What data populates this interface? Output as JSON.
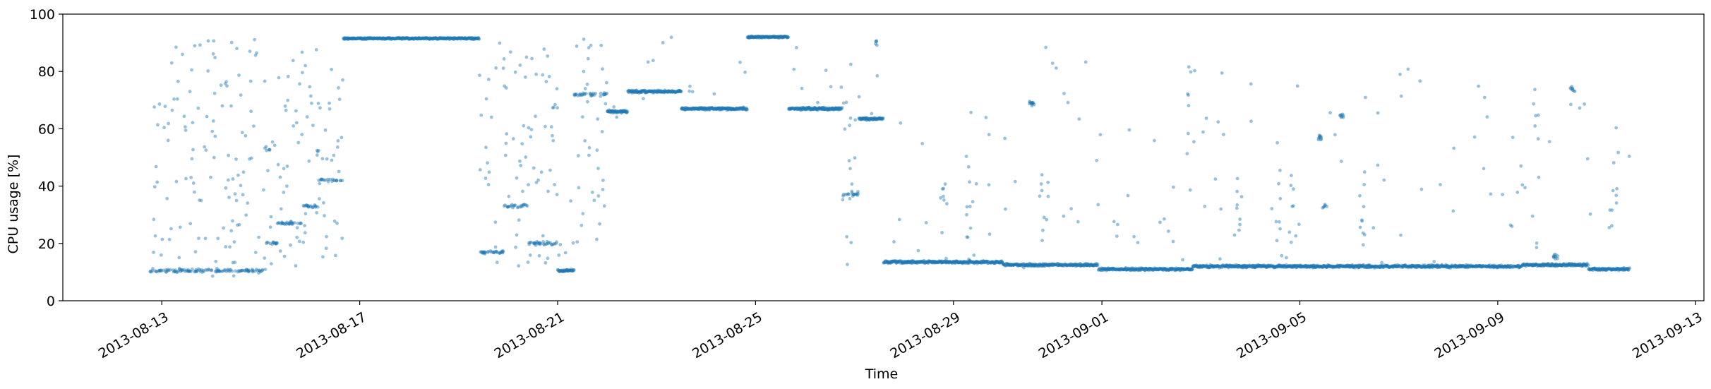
{
  "chart_data": {
    "type": "scatter",
    "xlabel": "Time",
    "ylabel": "CPU usage [%]",
    "ylim": [
      0,
      100
    ],
    "y_ticks": [
      0,
      20,
      40,
      60,
      80,
      100
    ],
    "xlim": [
      "2013-08-11T00:00",
      "2013-09-13T04:00"
    ],
    "x_ticks": [
      "2013-08-13",
      "2013-08-17",
      "2013-08-21",
      "2013-08-25",
      "2013-08-29",
      "2013-09-01",
      "2013-09-05",
      "2013-09-09",
      "2013-09-13"
    ],
    "marker_color": "#1f77b4",
    "grid": false,
    "legend": "none",
    "segments": [
      {
        "start": "2013-08-12T18:00",
        "end": "2013-08-15T02:00",
        "base": 10.5,
        "spread": [
          8,
          92
        ],
        "density": "scattered"
      },
      {
        "start": "2013-08-15T02:00",
        "end": "2013-08-15T08:00",
        "base": 20,
        "spread": [
          10,
          60
        ],
        "density": "scattered"
      },
      {
        "start": "2013-08-15T08:00",
        "end": "2013-08-15T20:00",
        "base": 27,
        "spread": [
          12,
          90
        ],
        "density": "scattered"
      },
      {
        "start": "2013-08-15T20:00",
        "end": "2013-08-16T04:00",
        "base": 33,
        "spread": [
          15,
          92
        ],
        "density": "scattered"
      },
      {
        "start": "2013-08-16T04:00",
        "end": "2013-08-16T16:00",
        "base": 42,
        "spread": [
          10,
          83
        ],
        "density": "scattered"
      },
      {
        "start": "2013-08-16T16:00",
        "end": "2013-08-19T10:00",
        "base": 91.5,
        "spread": [
          90,
          93
        ],
        "density": "solid"
      },
      {
        "start": "2013-08-19T10:00",
        "end": "2013-08-19T22:00",
        "base": 17,
        "spread": [
          10,
          90
        ],
        "density": "scattered"
      },
      {
        "start": "2013-08-19T22:00",
        "end": "2013-08-20T10:00",
        "base": 33,
        "spread": [
          12,
          91
        ],
        "density": "scattered"
      },
      {
        "start": "2013-08-20T10:00",
        "end": "2013-08-21T00:00",
        "base": 20,
        "spread": [
          10,
          91
        ],
        "density": "scattered"
      },
      {
        "start": "2013-08-21T00:00",
        "end": "2013-08-21T08:00",
        "base": 10.5,
        "spread": [
          10,
          40
        ],
        "density": "band"
      },
      {
        "start": "2013-08-21T08:00",
        "end": "2013-08-22T00:00",
        "base": 72,
        "spread": [
          15,
          92
        ],
        "density": "scattered"
      },
      {
        "start": "2013-08-22T00:00",
        "end": "2013-08-22T10:00",
        "base": 66,
        "spread": [
          63,
          68
        ],
        "density": "band"
      },
      {
        "start": "2013-08-22T10:00",
        "end": "2013-08-23T12:00",
        "base": 73,
        "spread": [
          70,
          92
        ],
        "density": "band"
      },
      {
        "start": "2013-08-23T12:00",
        "end": "2013-08-24T20:00",
        "base": 67,
        "spread": [
          65,
          92
        ],
        "density": "band"
      },
      {
        "start": "2013-08-24T20:00",
        "end": "2013-08-25T16:00",
        "base": 92,
        "spread": [
          90,
          93
        ],
        "density": "solid"
      },
      {
        "start": "2013-08-25T16:00",
        "end": "2013-08-26T18:00",
        "base": 67,
        "spread": [
          65,
          92
        ],
        "density": "band"
      },
      {
        "start": "2013-08-26T18:00",
        "end": "2013-08-27T02:00",
        "base": 37,
        "spread": [
          10,
          85
        ],
        "density": "scattered"
      },
      {
        "start": "2013-08-27T02:00",
        "end": "2013-08-27T14:00",
        "base": 63.5,
        "spread": [
          62,
          90
        ],
        "density": "band"
      },
      {
        "start": "2013-08-27T14:00",
        "end": "2013-08-30T00:00",
        "base": 13.5,
        "spread": [
          12,
          66
        ],
        "density": "band"
      },
      {
        "start": "2013-08-30T00:00",
        "end": "2013-08-31T22:00",
        "base": 12.5,
        "spread": [
          11,
          92
        ],
        "density": "band"
      },
      {
        "start": "2013-08-31T22:00",
        "end": "2013-09-02T20:00",
        "base": 11,
        "spread": [
          10,
          60
        ],
        "density": "band"
      },
      {
        "start": "2013-09-02T20:00",
        "end": "2013-09-05T12:00",
        "base": 12,
        "spread": [
          11,
          83
        ],
        "density": "band"
      },
      {
        "start": "2013-09-05T12:00",
        "end": "2013-09-09T12:00",
        "base": 12,
        "spread": [
          11,
          84
        ],
        "density": "band"
      },
      {
        "start": "2013-09-09T12:00",
        "end": "2013-09-10T20:00",
        "base": 12.5,
        "spread": [
          11,
          91
        ],
        "density": "band"
      },
      {
        "start": "2013-09-10T20:00",
        "end": "2013-09-11T16:00",
        "base": 11,
        "spread": [
          10,
          63
        ],
        "density": "band"
      }
    ],
    "clusters": [
      {
        "at": "2013-08-27T10:00",
        "value": 90,
        "count": 5
      },
      {
        "at": "2013-08-30T14:00",
        "value": 69,
        "count": 12
      },
      {
        "at": "2013-09-05T10:00",
        "value": 57,
        "count": 10
      },
      {
        "at": "2013-09-05T12:00",
        "value": 33,
        "count": 6
      },
      {
        "at": "2013-09-05T20:00",
        "value": 64.5,
        "count": 8
      },
      {
        "at": "2013-09-10T04:00",
        "value": 15.5,
        "count": 10
      },
      {
        "at": "2013-09-10T12:00",
        "value": 74,
        "count": 8
      }
    ],
    "spikes": [
      {
        "at": "2013-08-28T20:00",
        "top": 42
      },
      {
        "at": "2013-08-29T08:00",
        "top": 47
      },
      {
        "at": "2013-08-30T20:00",
        "top": 51
      },
      {
        "at": "2013-09-02T18:00",
        "top": 83
      },
      {
        "at": "2013-09-03T18:00",
        "top": 51
      },
      {
        "at": "2013-09-04T14:00",
        "top": 59
      },
      {
        "at": "2013-09-04T20:00",
        "top": 48
      },
      {
        "at": "2013-09-06T06:00",
        "top": 41
      },
      {
        "at": "2013-09-09T18:00",
        "top": 76
      },
      {
        "at": "2013-09-11T08:00",
        "top": 62
      }
    ]
  }
}
